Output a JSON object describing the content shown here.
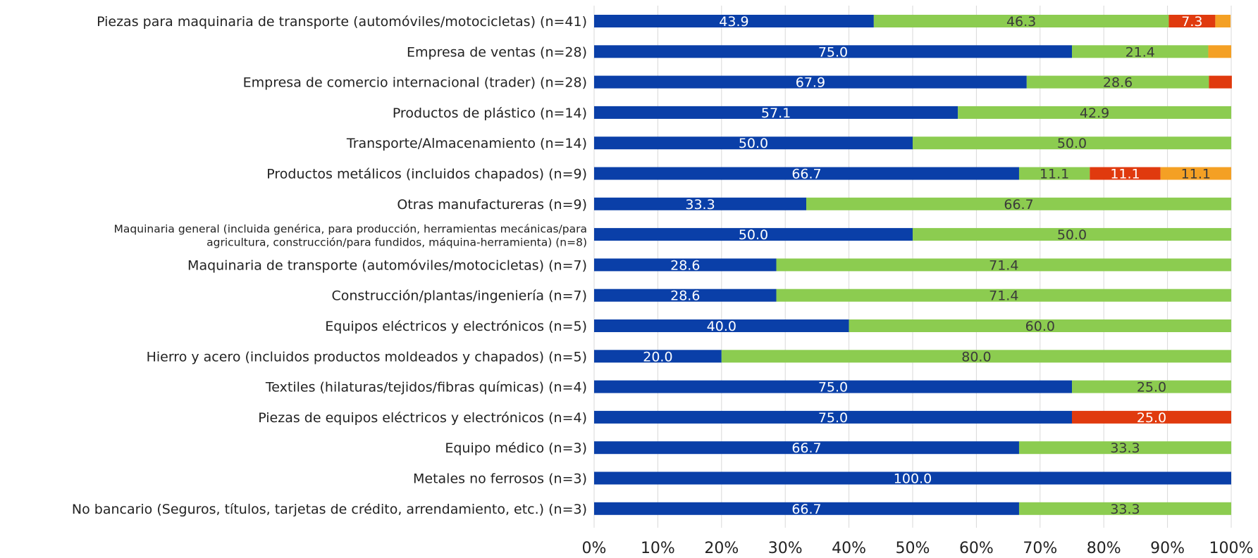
{
  "chart_data": {
    "type": "bar",
    "orientation": "horizontal",
    "stacked": "percent",
    "categories": [
      "Piezas para maquinaria de transporte (automóviles/motocicletas) (n=41)",
      "Empresa de ventas (n=28)",
      "Empresa de comercio internacional (trader) (n=28)",
      "Productos de plástico (n=14)",
      "Transporte/Almacenamiento (n=14)",
      "Productos metálicos (incluidos chapados) (n=9)",
      "Otras manufactureras (n=9)",
      "Maquinaria general (incluida genérica, para producción, herramientas mecánicas/para agricultura, construcción/para fundidos, máquina-herramienta) (n=8)",
      "Maquinaria de transporte (automóviles/motocicletas) (n=7)",
      "Construcción/plantas/ingeniería (n=7)",
      "Equipos eléctricos y electrónicos (n=5)",
      "Hierro y acero (incluidos productos moldeados y chapados) (n=5)",
      "Textiles (hilaturas/tejidos/fibras químicas) (n=4)",
      "Piezas de equipos eléctricos y electrónicos (n=4)",
      "Equipo médico (n=3)",
      "Metales no ferrosos (n=3)",
      "No bancario (Seguros, títulos, tarjetas de crédito, arrendamiento, etc.) (n=3)"
    ],
    "category_lines": [
      [
        "Piezas para maquinaria de transporte (automóviles/motocicletas) (n=41)"
      ],
      [
        "Empresa de ventas (n=28)"
      ],
      [
        "Empresa de comercio internacional (trader) (n=28)"
      ],
      [
        "Productos de plástico (n=14)"
      ],
      [
        "Transporte/Almacenamiento (n=14)"
      ],
      [
        "Productos metálicos (incluidos chapados) (n=9)"
      ],
      [
        "Otras manufactureras (n=9)"
      ],
      [
        "Maquinaria general (incluida genérica, para producción, herramientas mecánicas/para",
        "agricultura, construcción/para fundidos, máquina-herramienta) (n=8)"
      ],
      [
        "Maquinaria de transporte (automóviles/motocicletas) (n=7)"
      ],
      [
        "Construcción/plantas/ingeniería (n=7)"
      ],
      [
        "Equipos eléctricos y electrónicos (n=5)"
      ],
      [
        "Hierro y acero (incluidos productos moldeados y chapados) (n=5)"
      ],
      [
        "Textiles (hilaturas/tejidos/fibras químicas) (n=4)"
      ],
      [
        "Piezas de equipos eléctricos y electrónicos (n=4)"
      ],
      [
        "Equipo médico (n=3)"
      ],
      [
        "Metales no ferrosos (n=3)"
      ],
      [
        "No bancario (Seguros, títulos, tarjetas de crédito, arrendamiento, etc.) (n=3)"
      ]
    ],
    "series": [
      {
        "color": "#0a3fa8",
        "label_color": "#ffffff",
        "values": [
          43.9,
          75.0,
          67.9,
          57.1,
          50.0,
          66.7,
          33.3,
          50.0,
          28.6,
          28.6,
          40.0,
          20.0,
          75.0,
          75.0,
          66.7,
          100.0,
          66.7
        ],
        "labels": [
          "43.9",
          "75.0",
          "67.9",
          "57.1",
          "50.0",
          "66.7",
          "33.3",
          "50.0",
          "28.6",
          "28.6",
          "40.0",
          "20.0",
          "75.0",
          "75.0",
          "66.7",
          "100.0",
          "66.7"
        ]
      },
      {
        "color": "#8ccc50",
        "label_color": "#3a3a3a",
        "values": [
          46.3,
          21.4,
          28.6,
          42.9,
          50.0,
          11.1,
          66.7,
          50.0,
          71.4,
          71.4,
          60.0,
          80.0,
          25.0,
          0,
          33.3,
          0,
          33.3
        ],
        "labels": [
          "46.3",
          "21.4",
          "28.6",
          "42.9",
          "50.0",
          "11.1",
          "66.7",
          "50.0",
          "71.4",
          "71.4",
          "60.0",
          "80.0",
          "25.0",
          "",
          "33.3",
          "",
          "33.3"
        ]
      },
      {
        "color": "#e03a0e",
        "label_color": "#ffffff",
        "values": [
          7.3,
          0,
          3.6,
          0,
          0,
          11.1,
          0,
          0,
          0,
          0,
          0,
          0,
          0,
          25.0,
          0,
          0,
          0
        ],
        "labels": [
          "7.3",
          "",
          "",
          "",
          "",
          "11.1",
          "",
          "",
          "",
          "",
          "",
          "",
          "",
          "25.0",
          "",
          "",
          ""
        ]
      },
      {
        "color": "#f4a024",
        "label_color": "#3a3a3a",
        "values": [
          2.4,
          3.6,
          0,
          0,
          0,
          11.1,
          0,
          0,
          0,
          0,
          0,
          0,
          0,
          0,
          0,
          0,
          0
        ],
        "labels": [
          "",
          "",
          "",
          "",
          "",
          "11.1",
          "",
          "",
          "",
          "",
          "",
          "",
          "",
          "",
          "",
          "",
          ""
        ]
      }
    ],
    "xlim": [
      0,
      100
    ],
    "x_ticks": [
      0,
      10,
      20,
      30,
      40,
      50,
      60,
      70,
      80,
      90,
      100
    ],
    "x_tick_labels": [
      "0%",
      "10%",
      "20%",
      "30%",
      "40%",
      "50%",
      "60%",
      "70%",
      "80%",
      "90%",
      "100%"
    ],
    "grid": "vertical",
    "legend": "none"
  }
}
